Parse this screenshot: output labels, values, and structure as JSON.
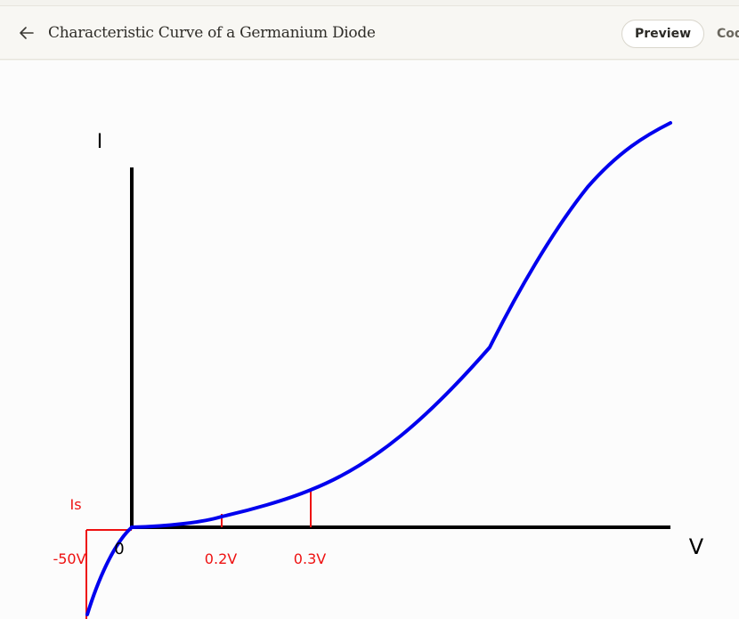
{
  "header": {
    "title": "Characteristic Curve of a Germanium Diode",
    "back_icon": "arrow-left-icon",
    "tabs": [
      {
        "label": "Preview",
        "active": true
      },
      {
        "label": "Code",
        "active": false
      }
    ]
  },
  "diagram": {
    "y_axis_label": "I",
    "x_axis_label": "V",
    "origin_label": "0",
    "saturation_label": "Is",
    "reverse_voltage_label": "-50V",
    "marker_labels": [
      "0.2V",
      "0.3V"
    ],
    "colors": {
      "curve": "#0000ee",
      "axes": "#000000",
      "annotations": "#ee1111"
    }
  }
}
